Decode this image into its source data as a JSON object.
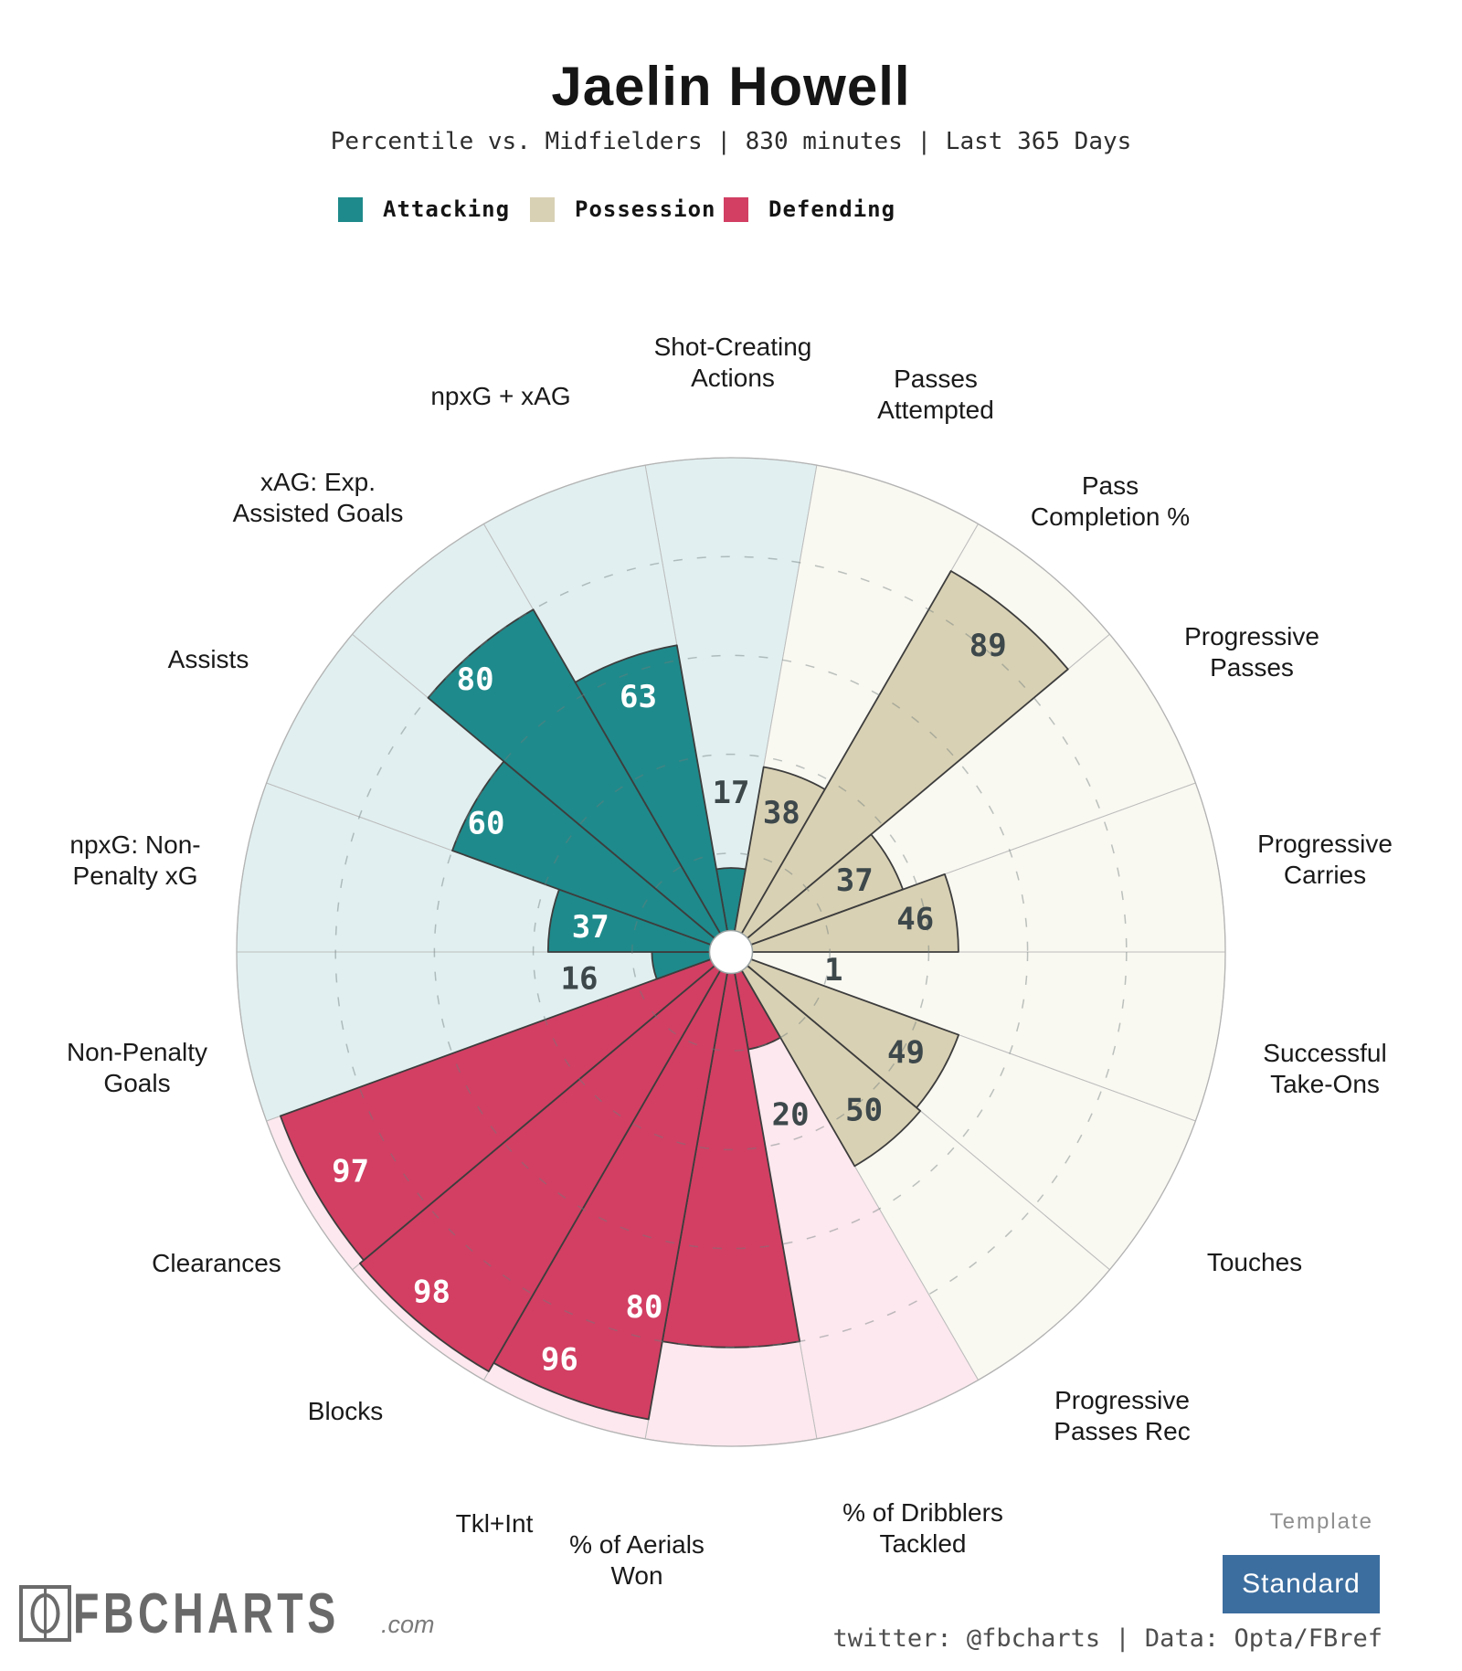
{
  "chart_data": {
    "type": "pizza",
    "title": "Jaelin Howell",
    "subtitle": "Percentile vs. Midfielders | 830 minutes | Last 365 Days",
    "unit": "percentile",
    "scale": [
      0,
      100
    ],
    "rings_dashed": [
      20,
      40,
      60,
      80
    ],
    "legend_order": [
      "attacking",
      "possession",
      "defending"
    ],
    "groups": {
      "attacking": {
        "label": "Attacking",
        "fill": "#1f8a8b",
        "bg": "#e1eff0"
      },
      "possession": {
        "label": "Possession",
        "fill": "#d9d1b4",
        "bg": "#f9f8f1"
      },
      "defending": {
        "label": "Defending",
        "fill": "#d23f63",
        "bg": "#fce8ee"
      }
    },
    "slices": [
      {
        "stat": "Shot-Creating Actions",
        "lines": [
          "Shot-Creating",
          "Actions"
        ],
        "group": "attacking",
        "value": 17
      },
      {
        "stat": "Passes Attempted",
        "lines": [
          "Passes",
          "Attempted"
        ],
        "group": "possession",
        "value": 38
      },
      {
        "stat": "Pass Completion %",
        "lines": [
          "Pass",
          "Completion %"
        ],
        "group": "possession",
        "value": 89
      },
      {
        "stat": "Progressive Passes",
        "lines": [
          "Progressive",
          "Passes"
        ],
        "group": "possession",
        "value": 37
      },
      {
        "stat": "Progressive Carries",
        "lines": [
          "Progressive",
          "Carries"
        ],
        "group": "possession",
        "value": 46
      },
      {
        "stat": "Successful Take-Ons",
        "lines": [
          "Successful",
          "Take-Ons"
        ],
        "group": "possession",
        "value": 1
      },
      {
        "stat": "Touches",
        "lines": [
          "Touches"
        ],
        "group": "possession",
        "value": 49
      },
      {
        "stat": "Progressive Passes Rec",
        "lines": [
          "Progressive",
          "Passes Rec"
        ],
        "group": "possession",
        "value": 50
      },
      {
        "stat": "% of Dribblers Tackled",
        "lines": [
          "% of Dribblers",
          "Tackled"
        ],
        "group": "defending",
        "value": 20
      },
      {
        "stat": "% of Aerials Won",
        "lines": [
          "% of Aerials",
          "Won"
        ],
        "group": "defending",
        "value": 80
      },
      {
        "stat": "Tkl+Int",
        "lines": [
          "Tkl+Int"
        ],
        "group": "defending",
        "value": 96
      },
      {
        "stat": "Blocks",
        "lines": [
          "Blocks"
        ],
        "group": "defending",
        "value": 98
      },
      {
        "stat": "Clearances",
        "lines": [
          "Clearances"
        ],
        "group": "defending",
        "value": 97
      },
      {
        "stat": "Non-Penalty Goals",
        "lines": [
          "Non-Penalty",
          "Goals"
        ],
        "group": "attacking",
        "value": 16
      },
      {
        "stat": "npxG: Non-Penalty xG",
        "lines": [
          "npxG: Non-",
          "Penalty xG"
        ],
        "group": "attacking",
        "value": 37
      },
      {
        "stat": "Assists",
        "lines": [
          "Assists"
        ],
        "group": "attacking",
        "value": 60
      },
      {
        "stat": "xAG: Exp. Assisted Goals",
        "lines": [
          "xAG: Exp.",
          "Assisted Goals"
        ],
        "group": "attacking",
        "value": 80
      },
      {
        "stat": "npxG + xAG",
        "lines": [
          "npxG + xAG"
        ],
        "group": "attacking",
        "value": 63
      }
    ]
  },
  "footer": {
    "brand": "FBCHARTS",
    "brand_suffix": ".com",
    "template_label": "Template",
    "template_value": "Standard",
    "button_color": "#3c6e9f",
    "credits": "twitter: @fbcharts | Data: Opta/FBref"
  }
}
